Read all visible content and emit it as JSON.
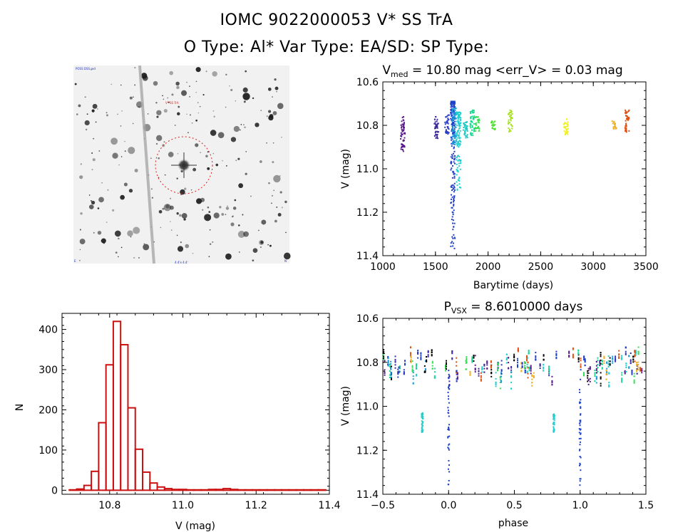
{
  "header": {
    "title_line1": "IOMC 9022000053    V* SS TrA",
    "title_line2": "O Type: Al*  Var Type: EA/SD:  SP Type:"
  },
  "finder": {
    "label_top_left": "POSS DSS red",
    "label_center": "V* SS TrA",
    "label_bottom": "4.4'x 4.4'",
    "label_bottom_left": "E",
    "label_bottom_right": "N"
  },
  "chart_data": [
    {
      "id": "lightcurve",
      "type": "scatter",
      "title_main": "V",
      "title_sub": "med",
      "title_rest": " = 10.80 mag <err_V> = 0.03 mag",
      "xlabel": "Barytime (days)",
      "ylabel": "V (mag)",
      "xlim": [
        1000,
        3500
      ],
      "ylim": [
        10.6,
        11.4
      ],
      "y_inverted": true,
      "xticks": [
        1000,
        1500,
        2000,
        2500,
        3000,
        3500
      ],
      "yticks": [
        10.6,
        10.8,
        11.0,
        11.2,
        11.4
      ],
      "groups": [
        {
          "x": 1190,
          "ymin": 10.76,
          "ymax": 10.92,
          "color": "#5a1a8a"
        },
        {
          "x": 1510,
          "ymin": 10.76,
          "ymax": 10.86,
          "color": "#3a2aa0"
        },
        {
          "x": 1610,
          "ymin": 10.75,
          "ymax": 10.84,
          "color": "#2c3cc0"
        },
        {
          "x": 1665,
          "ymin": 10.69,
          "ymax": 11.37,
          "color": "#1e40c8"
        },
        {
          "x": 1680,
          "ymin": 10.72,
          "ymax": 10.9,
          "color": "#1a9ad8"
        },
        {
          "x": 1720,
          "ymin": 10.74,
          "ymax": 11.12,
          "color": "#20d0d0"
        },
        {
          "x": 1785,
          "ymin": 10.78,
          "ymax": 10.86,
          "color": "#1ac8c0"
        },
        {
          "x": 1850,
          "ymin": 10.73,
          "ymax": 10.85,
          "color": "#18d890"
        },
        {
          "x": 1900,
          "ymin": 10.76,
          "ymax": 10.83,
          "color": "#30e050"
        },
        {
          "x": 2050,
          "ymin": 10.78,
          "ymax": 10.82,
          "color": "#50e030"
        },
        {
          "x": 2210,
          "ymin": 10.73,
          "ymax": 10.83,
          "color": "#a8e020"
        },
        {
          "x": 2740,
          "ymin": 10.77,
          "ymax": 10.85,
          "color": "#f0f020"
        },
        {
          "x": 3200,
          "ymin": 10.78,
          "ymax": 10.82,
          "color": "#f0b020"
        },
        {
          "x": 3320,
          "ymin": 10.73,
          "ymax": 10.84,
          "color": "#e05010"
        }
      ]
    },
    {
      "id": "histogram",
      "type": "bar",
      "xlabel": "V (mag)",
      "ylabel": "N",
      "xlim": [
        10.67,
        11.4
      ],
      "ylim": [
        -10,
        440
      ],
      "xticks": [
        10.8,
        11.0,
        11.2,
        11.4
      ],
      "yticks": [
        0,
        100,
        200,
        300,
        400
      ],
      "bin_width": 0.02,
      "bin_start": 10.69,
      "values": [
        1,
        3,
        12,
        47,
        168,
        312,
        420,
        362,
        205,
        102,
        45,
        18,
        8,
        4,
        2,
        2,
        1,
        1,
        1,
        2,
        2,
        4,
        2,
        1,
        1,
        1,
        1,
        1,
        1,
        1,
        1,
        1,
        1,
        1,
        1
      ],
      "color": "#cc1111"
    },
    {
      "id": "phased",
      "type": "scatter",
      "title_main": "P",
      "title_sub": "VSX",
      "title_rest": " = 8.6010000 days",
      "xlabel": "phase",
      "ylabel": "V (mag)",
      "xlim": [
        -0.5,
        1.5
      ],
      "ylim": [
        10.6,
        11.4
      ],
      "y_inverted": true,
      "xticks": [
        -0.5,
        0.0,
        0.5,
        1.0,
        1.5
      ],
      "yticks": [
        10.6,
        10.8,
        11.0,
        11.2,
        11.4
      ],
      "xtick_labels": [
        "−0.5",
        "0.0",
        "0.5",
        "1.0",
        "1.5"
      ],
      "eclipse": {
        "x": 0.0,
        "ymin": 10.82,
        "ymax": 11.37,
        "color": "#1e40c8"
      },
      "eclipse_secondary": {
        "x": -0.2,
        "ymin": 11.03,
        "ymax": 11.12,
        "color": "#20d0d0"
      }
    }
  ]
}
